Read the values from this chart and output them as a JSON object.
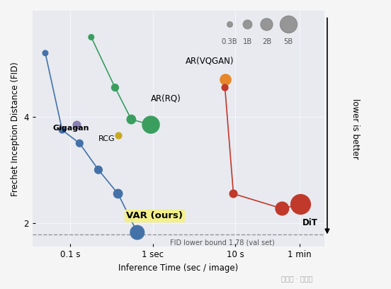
{
  "bg_color": "#e8eaf0",
  "plot_bg_color": "#e8eaf0",
  "fig_bg_color": "#f5f5f5",
  "blue_series": {
    "x": [
      0.05,
      0.08,
      0.13,
      0.22,
      0.38,
      0.65
    ],
    "y": [
      5.2,
      3.75,
      3.5,
      3.0,
      2.55,
      1.82
    ],
    "sizes": [
      30,
      40,
      50,
      60,
      80,
      200
    ],
    "color": "#4472a8",
    "label": "VAR (ours)"
  },
  "green_series": {
    "x": [
      0.18,
      0.35,
      0.55,
      0.95
    ],
    "y": [
      5.5,
      4.55,
      3.95,
      3.85
    ],
    "sizes": [
      30,
      50,
      80,
      300
    ],
    "color": "#3a9e5f",
    "label": "AR(RQ)"
  },
  "gigagan": {
    "x": [
      0.12
    ],
    "y": [
      3.85
    ],
    "size": 60,
    "color": "#8b7fb5",
    "label": "Gigagan"
  },
  "rcg": {
    "x": [
      0.38
    ],
    "y": [
      3.65
    ],
    "size": 40,
    "color": "#c8a820",
    "label": "RCG"
  },
  "ar_vqgan": {
    "x": [
      7.5
    ],
    "y": [
      4.7
    ],
    "size": 120,
    "color": "#e8862a",
    "label": "AR(VQGAN)"
  },
  "dit_series": {
    "x": [
      7.5,
      9.5,
      37,
      62
    ],
    "y": [
      4.55,
      2.55,
      2.27,
      2.35
    ],
    "sizes": [
      40,
      60,
      180,
      400
    ],
    "color": "#c0392b",
    "label": "DiT"
  },
  "fid_lower_bound": 1.78,
  "ylim": [
    1.55,
    6.0
  ],
  "xticks": [
    0.1,
    1.0,
    10.0,
    60.0
  ],
  "xtick_labels": [
    "0.1 s",
    "1 sec",
    "10 s",
    "1 min"
  ],
  "xlabel": "Inference Time (sec / image)",
  "ylabel": "Frechet Inception Distance (FID)",
  "size_legend_labels": [
    "0.3B",
    "1B",
    "2B",
    "5B"
  ],
  "size_legend_sizes": [
    30,
    80,
    150,
    300
  ],
  "size_legend_color": "#888888"
}
